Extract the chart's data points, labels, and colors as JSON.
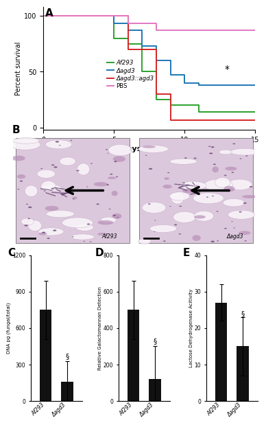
{
  "panel_A": {
    "xlabel": "Days elapsed",
    "ylabel": "Percent survival",
    "xlim": [
      0,
      15
    ],
    "ylim": [
      -2,
      108
    ],
    "yticks": [
      0,
      50,
      100
    ],
    "xticks": [
      0,
      5,
      10,
      15
    ],
    "star_x": 13,
    "star_y": 52,
    "curves": [
      {
        "label": "Af293",
        "color": "#2ca02c",
        "x": [
          0,
          5,
          5,
          6,
          6,
          7,
          7,
          8,
          8,
          9,
          9,
          11,
          11,
          12,
          12,
          15
        ],
        "y": [
          100,
          100,
          80,
          80,
          75,
          75,
          50,
          50,
          25,
          25,
          20,
          20,
          14,
          14,
          14,
          14
        ]
      },
      {
        "label": "Δagd3",
        "color": "#1f77b4",
        "x": [
          0,
          5,
          5,
          6,
          6,
          7,
          7,
          8,
          8,
          9,
          9,
          10,
          10,
          11,
          11,
          15
        ],
        "y": [
          100,
          100,
          93,
          93,
          87,
          87,
          73,
          73,
          60,
          60,
          47,
          47,
          40,
          40,
          38,
          38
        ]
      },
      {
        "label": "Δagd3::agd3",
        "color": "#d62728",
        "x": [
          0,
          5,
          5,
          6,
          6,
          7,
          7,
          8,
          8,
          9,
          9,
          10,
          10,
          15
        ],
        "y": [
          100,
          100,
          100,
          100,
          70,
          70,
          70,
          70,
          30,
          30,
          7,
          7,
          7,
          7
        ]
      },
      {
        "label": "PBS",
        "color": "#e377c2",
        "x": [
          0,
          6,
          6,
          8,
          8,
          9,
          9,
          15
        ],
        "y": [
          100,
          100,
          93,
          93,
          87,
          87,
          87,
          87
        ]
      }
    ]
  },
  "panel_C": {
    "label": "C",
    "ylabel": "DNA pg (fungal/total)",
    "categories": [
      "Af293",
      "Δagd3"
    ],
    "values": [
      750,
      160
    ],
    "errors": [
      240,
      170
    ],
    "ylim": [
      0,
      1200
    ],
    "yticks": [
      0,
      300,
      600,
      900,
      1200
    ],
    "bar_color": "#111111",
    "sig_label": "§",
    "sig_x": 1,
    "sig_y": 340
  },
  "panel_D": {
    "label": "D",
    "ylabel": "Relative Galactomannan Detection",
    "categories": [
      "Af293",
      "Δagd3"
    ],
    "values": [
      500,
      120
    ],
    "errors": [
      160,
      180
    ],
    "ylim": [
      0,
      800
    ],
    "yticks": [
      0,
      200,
      400,
      600,
      800
    ],
    "bar_color": "#111111",
    "sig_label": "§",
    "sig_x": 1,
    "sig_y": 310
  },
  "panel_E": {
    "label": "E",
    "ylabel": "Lactose Dehydrogenase Acitivity",
    "categories": [
      "Af293",
      "Δagd3"
    ],
    "values": [
      27,
      15
    ],
    "errors": [
      5,
      8
    ],
    "ylim": [
      0,
      40
    ],
    "yticks": [
      0,
      10,
      20,
      30,
      40
    ],
    "bar_color": "#111111",
    "sig_label": "§",
    "sig_x": 1,
    "sig_y": 23
  },
  "panel_B_left_label": "Af293",
  "panel_B_right_label": "Δagd3",
  "bg_color": "#ffffff",
  "tissue_bg": "#d8c0d8",
  "tissue_dark": "#9b7a9b",
  "tissue_light": "#ede0ed",
  "tissue_white": "#f5f0f5"
}
